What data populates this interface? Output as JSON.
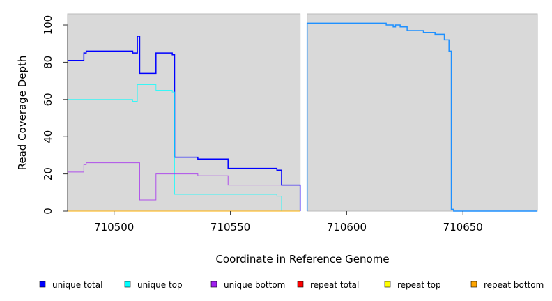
{
  "chart_data": {
    "type": "line",
    "xlabel": "Coordinate in Reference Genome",
    "ylabel": "Read Coverage Depth",
    "xlim": [
      710480,
      710682
    ],
    "ylim": [
      0,
      106
    ],
    "xticks": [
      710500,
      710550,
      710600,
      710650
    ],
    "yticks": [
      0,
      20,
      40,
      60,
      80,
      100
    ],
    "regions": [
      [
        710480,
        710580
      ],
      [
        710583,
        710682
      ]
    ],
    "legend_position": "bottom",
    "series": [
      {
        "name": "unique total",
        "color": "#0000ff",
        "steps": [
          [
            710480,
            81
          ],
          [
            710487,
            85
          ],
          [
            710488,
            86
          ],
          [
            710508,
            85
          ],
          [
            710510,
            94
          ],
          [
            710511,
            74
          ],
          [
            710518,
            85
          ],
          [
            710525,
            84
          ],
          [
            710526,
            29
          ],
          [
            710536,
            28
          ],
          [
            710549,
            23
          ],
          [
            710570,
            22
          ],
          [
            710572,
            14
          ],
          [
            710580,
            0
          ]
        ]
      },
      {
        "name": "unique top",
        "color": "#00ffff",
        "steps": [
          [
            710480,
            60
          ],
          [
            710508,
            59
          ],
          [
            710510,
            68
          ],
          [
            710518,
            65
          ],
          [
            710525,
            64
          ],
          [
            710526,
            9
          ],
          [
            710570,
            8
          ],
          [
            710572,
            0
          ],
          [
            710580,
            0
          ]
        ]
      },
      {
        "name": "unique bottom",
        "color": "#a020f0",
        "steps": [
          [
            710480,
            21
          ],
          [
            710487,
            25
          ],
          [
            710488,
            26
          ],
          [
            710511,
            6
          ],
          [
            710518,
            20
          ],
          [
            710536,
            19
          ],
          [
            710549,
            14
          ],
          [
            710580,
            0
          ]
        ]
      },
      {
        "name": "repeat total",
        "color": "#ff0000",
        "steps": [
          [
            710480,
            0
          ],
          [
            710580,
            0
          ]
        ]
      },
      {
        "name": "repeat top",
        "color": "#ffff00",
        "steps": [
          [
            710480,
            0
          ],
          [
            710580,
            0
          ]
        ]
      },
      {
        "name": "repeat bottom",
        "color": "#ffa500",
        "steps": [
          [
            710480,
            0
          ],
          [
            710580,
            0
          ]
        ]
      },
      {
        "name": "unique total (region 2)",
        "color": "#1e90ff",
        "steps": [
          [
            710583,
            0
          ],
          [
            710583,
            101
          ],
          [
            710617,
            100
          ],
          [
            710620,
            99
          ],
          [
            710621,
            100
          ],
          [
            710623,
            99
          ],
          [
            710626,
            97
          ],
          [
            710633,
            96
          ],
          [
            710638,
            95
          ],
          [
            710642,
            92
          ],
          [
            710644,
            86
          ],
          [
            710645,
            1
          ],
          [
            710646,
            0
          ],
          [
            710682,
            0
          ]
        ]
      }
    ]
  },
  "legend": [
    {
      "label": "unique total",
      "color": "#0000ff"
    },
    {
      "label": "unique top",
      "color": "#00ffff"
    },
    {
      "label": "unique bottom",
      "color": "#a020f0"
    },
    {
      "label": "repeat total",
      "color": "#ff0000"
    },
    {
      "label": "repeat top",
      "color": "#ffff00"
    },
    {
      "label": "repeat bottom",
      "color": "#ffa500"
    }
  ]
}
